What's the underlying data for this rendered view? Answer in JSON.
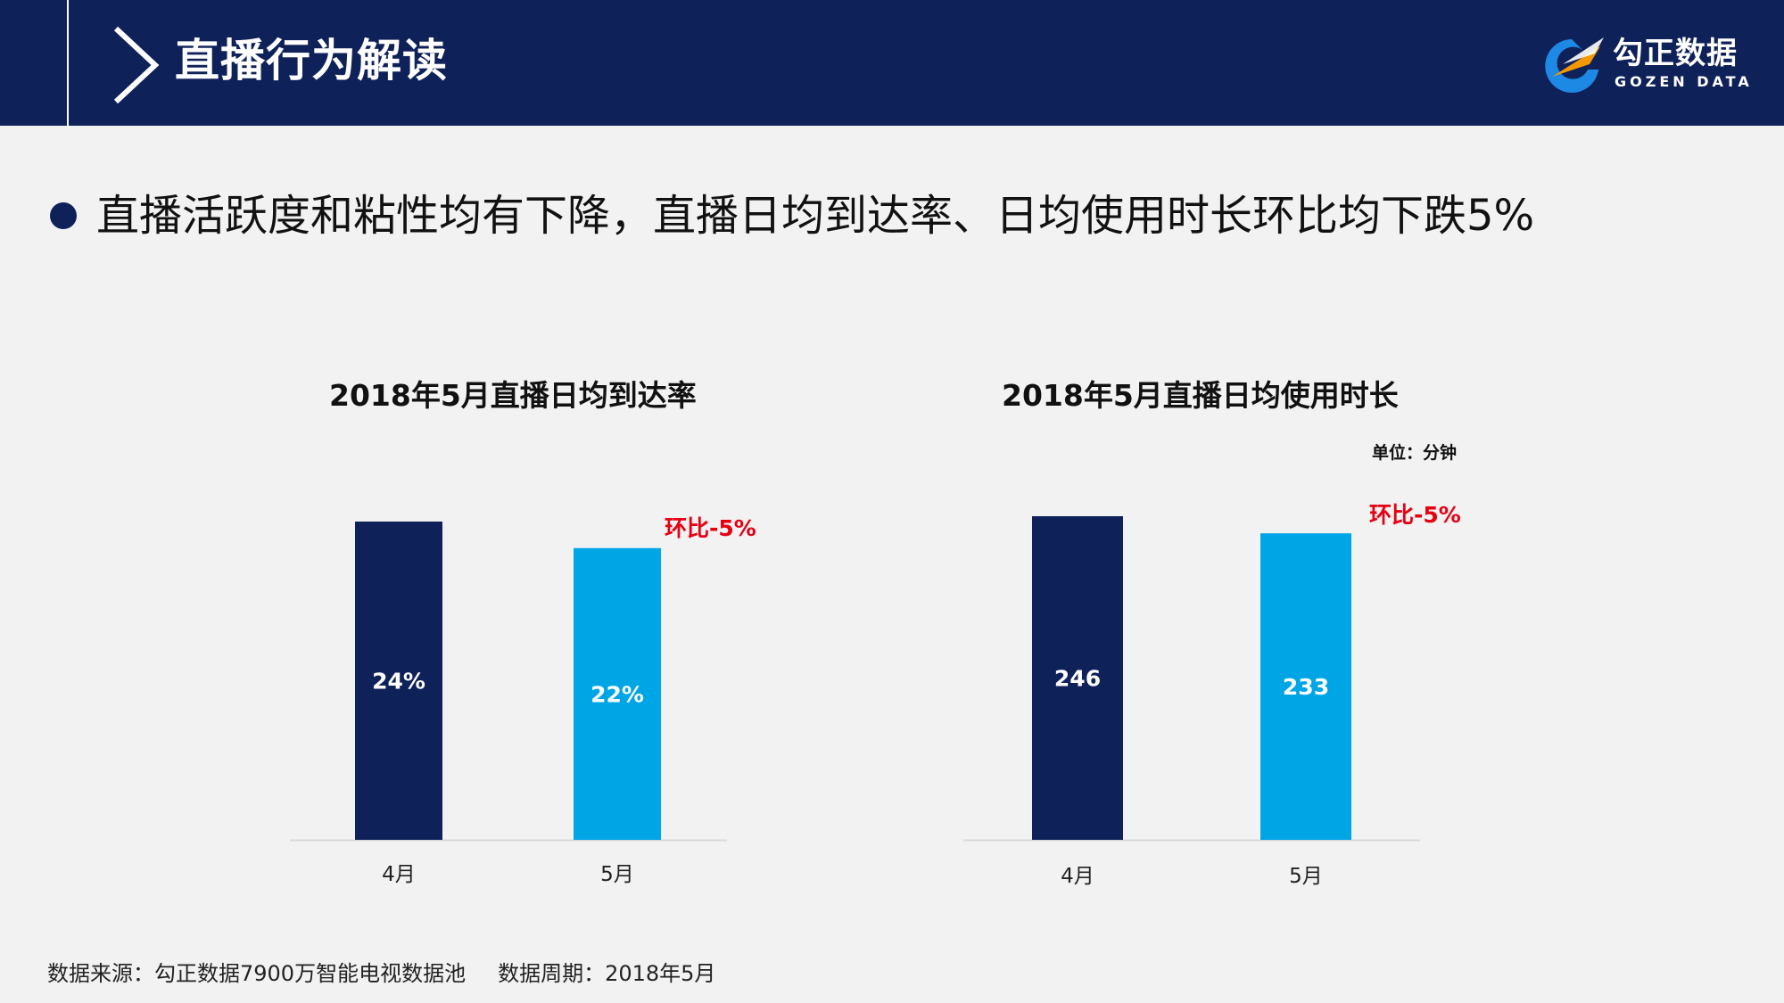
{
  "header": {
    "title": "直播行为解读",
    "logo_cn": "勾正数据",
    "logo_en": "GOZEN DATA"
  },
  "headline": "直播活跃度和粘性均有下降，直播日均到达率、日均使用时长环比均下跌5%",
  "colors": {
    "navy": "#0f2159",
    "blue": "#00a5e6",
    "red": "#e60012",
    "logo_orange": "#f39800",
    "logo_blue": "#1e88e5"
  },
  "chart_data": [
    {
      "type": "bar",
      "title": "2018年5月直播日均到达率",
      "categories": [
        "4月",
        "5月"
      ],
      "values": [
        24,
        22
      ],
      "value_labels": [
        "24%",
        "22%"
      ],
      "annotation": "环比-5%",
      "ylim": [
        0,
        24
      ],
      "xlabel": "",
      "ylabel": "",
      "grid": false
    },
    {
      "type": "bar",
      "title": "2018年5月直播日均使用时长",
      "unit": "单位：分钟",
      "categories": [
        "4月",
        "5月"
      ],
      "values": [
        246,
        233
      ],
      "value_labels": [
        "246",
        "233"
      ],
      "annotation": "环比-5%",
      "ylim": [
        0,
        246
      ],
      "xlabel": "",
      "ylabel": "",
      "grid": false
    }
  ],
  "footer": {
    "source": "数据来源：勾正数据7900万智能电视数据池",
    "period": "数据周期：2018年5月"
  }
}
